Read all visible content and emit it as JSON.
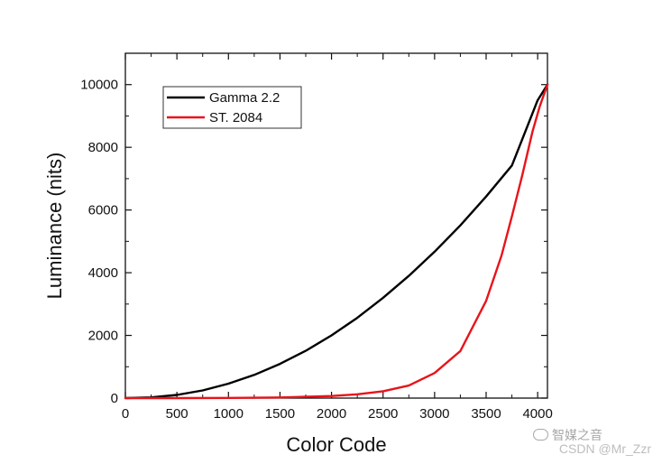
{
  "chart_data": {
    "type": "line",
    "xlabel": "Color Code",
    "ylabel": "Luminance (nits)",
    "xlim": [
      0,
      4095
    ],
    "ylim": [
      0,
      11000
    ],
    "xticks": [
      0,
      500,
      1000,
      1500,
      2000,
      2500,
      3000,
      3500,
      4000
    ],
    "yticks": [
      0,
      2000,
      4000,
      6000,
      8000,
      10000
    ],
    "xtick_labels": [
      "0",
      "500",
      "1000",
      "1500",
      "2000",
      "2500",
      "3000",
      "3500",
      "4000"
    ],
    "ytick_labels": [
      "0",
      "2000",
      "4000",
      "6000",
      "8000",
      "10000"
    ],
    "grid": false,
    "legend_position": "top-left",
    "series": [
      {
        "name": "Gamma 2.2",
        "color": "#000000",
        "x": [
          0,
          250,
          500,
          750,
          1000,
          1250,
          1500,
          1750,
          2000,
          2250,
          2500,
          2750,
          3000,
          3250,
          3500,
          3750,
          4000,
          4095
        ],
        "y": [
          0,
          22,
          100,
          245,
          460,
          740,
          1090,
          1510,
          2000,
          2560,
          3200,
          3900,
          4670,
          5510,
          6430,
          7420,
          9500,
          10000
        ]
      },
      {
        "name": "ST. 2084",
        "color": "#e8141b",
        "x": [
          0,
          500,
          1000,
          1500,
          2000,
          2250,
          2500,
          2750,
          3000,
          3250,
          3500,
          3650,
          3750,
          3850,
          3950,
          4020,
          4095
        ],
        "y": [
          0,
          1,
          5,
          20,
          65,
          120,
          220,
          400,
          800,
          1500,
          3100,
          4550,
          5800,
          7100,
          8500,
          9300,
          10000
        ]
      }
    ]
  },
  "watermark": {
    "logo_text": "智媒之音",
    "csdn_text": "CSDN @Mr_Zzr"
  }
}
